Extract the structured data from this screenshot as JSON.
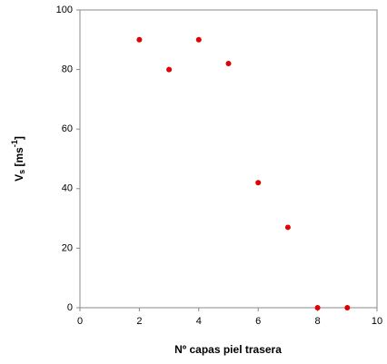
{
  "chart_data": {
    "type": "scatter",
    "xlabel": "Nº capas piel trasera",
    "ylabel": [
      "V",
      "s",
      " [ms",
      "-1",
      "]"
    ],
    "x": [
      2,
      3,
      4,
      5,
      6,
      7,
      8,
      9
    ],
    "values": [
      90,
      80,
      90,
      82,
      42,
      27,
      0,
      0
    ],
    "color": "#e00000",
    "xlim": [
      0,
      10
    ],
    "xticks": [
      0,
      2,
      4,
      6,
      8,
      10
    ],
    "ylim": [
      0,
      100
    ],
    "yticks": [
      0,
      20,
      40,
      60,
      80,
      100
    ],
    "grid": false
  }
}
